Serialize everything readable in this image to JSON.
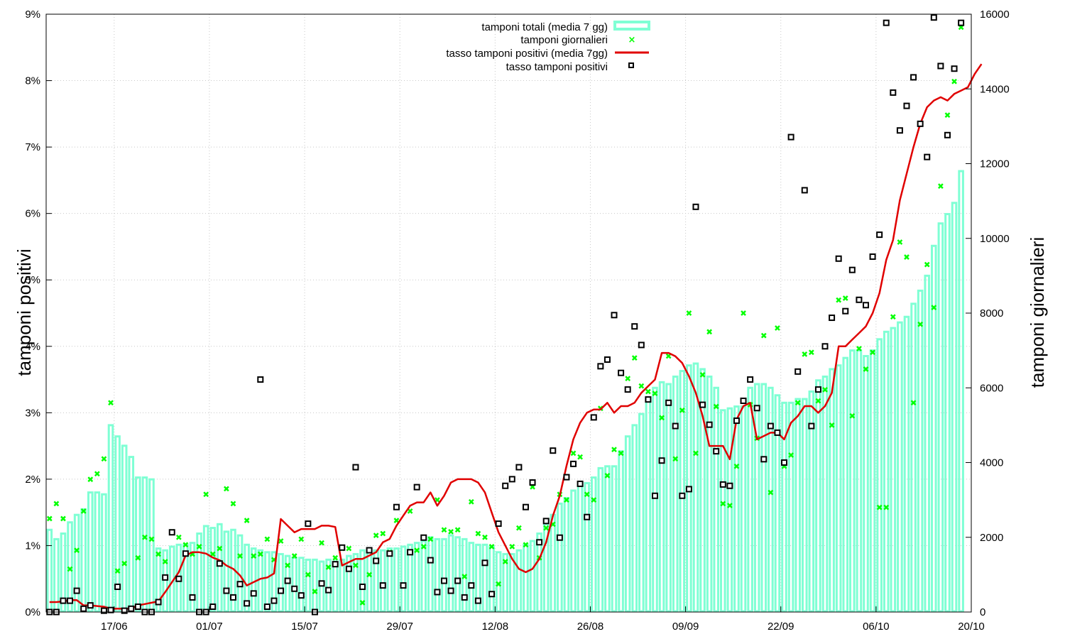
{
  "chart_data": {
    "type": "bar",
    "x_axis": {
      "tick_labels": [
        "17/06",
        "01/07",
        "15/07",
        "29/07",
        "12/08",
        "26/08",
        "09/09",
        "22/09",
        "06/10",
        "20/10"
      ],
      "tick_days": [
        10,
        24,
        38,
        52,
        66,
        80,
        94,
        108,
        122,
        136
      ],
      "range_days": [
        0,
        136
      ],
      "grid": true
    },
    "y_left": {
      "label": "tamponi positivi",
      "range": [
        0,
        9
      ],
      "tick_labels": [
        "0%",
        "1%",
        "2%",
        "3%",
        "4%",
        "5%",
        "6%",
        "7%",
        "8%",
        "9%"
      ],
      "grid": true
    },
    "y_right": {
      "label": "tamponi giornalieri",
      "range": [
        0,
        16000
      ],
      "tick_labels": [
        "0",
        "2000",
        "4000",
        "6000",
        "8000",
        "10000",
        "12000",
        "14000",
        "16000"
      ]
    },
    "legend": {
      "placement": "top-center",
      "entries": [
        {
          "label": "tamponi totali (media 7 gg)",
          "color": "#7fffd4",
          "style": "bar"
        },
        {
          "label": "tamponi giornalieri",
          "color": "#00ff00",
          "style": "cross"
        },
        {
          "label": "tasso tamponi positivi (media 7gg)",
          "color": "#e00000",
          "style": "line"
        },
        {
          "label": "tasso tamponi positivi",
          "color": "#000000",
          "style": "square"
        }
      ]
    },
    "series": [
      {
        "name": "tamponi totali (media 7 gg)",
        "axis": "right",
        "kind": "bar",
        "color": "#7fffd4",
        "values": [
          2200,
          1950,
          2100,
          2400,
          2600,
          2750,
          3200,
          3200,
          3150,
          5000,
          4700,
          4450,
          4150,
          3600,
          3600,
          3550,
          1700,
          1650,
          1750,
          1800,
          1800,
          1850,
          2100,
          2300,
          2250,
          2350,
          2150,
          2200,
          2050,
          1800,
          1700,
          1650,
          1600,
          1600,
          1550,
          1500,
          1450,
          1450,
          1400,
          1400,
          1350,
          1400,
          1350,
          1400,
          1500,
          1550,
          1650,
          1600,
          1650,
          1650,
          1700,
          1700,
          1750,
          1800,
          1850,
          1900,
          2000,
          1950,
          1950,
          2050,
          2000,
          1950,
          1850,
          1800,
          1800,
          1750,
          1600,
          1550,
          1550,
          1650,
          1800,
          1900,
          2100,
          2350,
          2600,
          2900,
          3050,
          3250,
          3400,
          3450,
          3600,
          3850,
          3900,
          3900,
          4300,
          4700,
          5000,
          5300,
          5700,
          6000,
          6150,
          6100,
          6300,
          6450,
          6600,
          6650,
          6500,
          6300,
          6000,
          5400,
          5450,
          5500,
          5500,
          6000,
          6100,
          6100,
          6000,
          5800,
          5600,
          5600,
          5700,
          5700,
          5900,
          6200,
          6300,
          6500,
          6600,
          6800,
          7000,
          7000,
          6850,
          7000,
          7300,
          7500,
          7600,
          7750,
          7900,
          8250,
          8600,
          9000,
          9800,
          10400,
          10650,
          10950,
          11800
        ]
      },
      {
        "name": "tamponi giornalieri",
        "axis": "right",
        "kind": "scatter",
        "color": "#00ff00",
        "x": [
          0,
          1,
          2,
          3,
          4,
          5,
          6,
          7,
          8,
          9,
          10,
          11,
          13,
          14,
          15,
          16,
          17,
          18,
          19,
          20,
          21,
          22,
          23,
          24,
          25,
          26,
          27,
          28,
          29,
          30,
          31,
          32,
          33,
          34,
          35,
          36,
          37,
          38,
          39,
          40,
          41,
          42,
          43,
          44,
          45,
          46,
          47,
          48,
          49,
          50,
          51,
          52,
          53,
          54,
          55,
          56,
          57,
          58,
          59,
          60,
          61,
          62,
          63,
          64,
          65,
          66,
          67,
          68,
          69,
          70,
          71,
          72,
          73,
          74,
          75,
          76,
          77,
          78,
          79,
          80,
          81,
          82,
          83,
          84,
          85,
          86,
          87,
          88,
          89,
          90,
          91,
          92,
          93,
          94,
          95,
          96,
          97,
          98,
          99,
          100,
          101,
          102,
          103,
          104,
          105,
          106,
          107,
          108,
          109,
          110,
          111,
          112,
          113,
          114,
          115,
          116,
          117,
          118,
          119,
          120,
          121,
          122,
          123,
          124,
          125,
          126,
          127,
          128,
          129,
          130,
          131,
          132,
          133,
          134
        ],
        "values": [
          2500,
          2900,
          2500,
          1150,
          1650,
          2700,
          3550,
          3700,
          4100,
          5600,
          1100,
          1300,
          1450,
          2000,
          1950,
          1550,
          1350,
          2150,
          2000,
          1800,
          1550,
          1750,
          3150,
          1550,
          1700,
          3300,
          2900,
          1500,
          2450,
          1500,
          1550,
          1950,
          1400,
          1900,
          1250,
          1500,
          1950,
          1000,
          550,
          1850,
          1200,
          1450,
          1700,
          1700,
          1250,
          250,
          1000,
          2050,
          2100,
          1600,
          2450,
          700,
          2700,
          1650,
          1750,
          1950,
          3000,
          2200,
          2150,
          2200,
          950,
          2950,
          2100,
          2000,
          1750,
          750,
          1350,
          1750,
          2250,
          1800,
          3350,
          1450,
          2250,
          2350,
          3150,
          3000,
          4250,
          4150,
          3150,
          3000,
          5450,
          3650,
          4350,
          4250,
          6250,
          6800,
          6050,
          5900,
          5850,
          5200,
          6850,
          4100,
          5400,
          8000,
          4250,
          6350,
          7500,
          5500,
          2900,
          2850,
          3900,
          8000,
          5550,
          4650,
          7400,
          3200,
          7600,
          3900,
          4200,
          5600,
          6900,
          6950,
          5650,
          5950,
          5000,
          8350,
          8400,
          5250,
          7050,
          6500,
          6950,
          2800,
          2800,
          7900,
          9900,
          9500,
          5600,
          7700,
          9300,
          8150,
          11400,
          13300,
          14200,
          15650
        ]
      },
      {
        "name": "tasso tamponi positivi (media 7gg)",
        "axis": "left",
        "kind": "line",
        "color": "#e00000",
        "values": [
          0.15,
          0.15,
          0.16,
          0.18,
          0.18,
          0.1,
          0.1,
          0.09,
          0.08,
          0.05,
          0.05,
          0.05,
          0.05,
          0.1,
          0.12,
          0.14,
          0.16,
          0.3,
          0.45,
          0.6,
          0.85,
          0.9,
          0.9,
          0.88,
          0.82,
          0.78,
          0.7,
          0.65,
          0.55,
          0.4,
          0.45,
          0.5,
          0.52,
          0.58,
          1.4,
          1.3,
          1.2,
          1.25,
          1.25,
          1.25,
          1.3,
          1.3,
          1.28,
          0.7,
          0.75,
          0.8,
          0.8,
          0.85,
          0.9,
          1.05,
          1.1,
          1.3,
          1.45,
          1.6,
          1.65,
          1.65,
          1.8,
          1.6,
          1.75,
          1.95,
          2.0,
          2.0,
          2.0,
          1.95,
          1.8,
          1.5,
          1.2,
          1.0,
          0.8,
          0.65,
          0.6,
          0.65,
          0.8,
          1.05,
          1.45,
          1.75,
          2.2,
          2.6,
          2.85,
          3.0,
          3.05,
          3.05,
          3.15,
          3.0,
          3.1,
          3.1,
          3.15,
          3.3,
          3.4,
          3.5,
          3.9,
          3.9,
          3.85,
          3.75,
          3.55,
          3.3,
          2.95,
          2.5,
          2.5,
          2.5,
          2.3,
          2.9,
          3.1,
          3.15,
          2.6,
          2.65,
          2.7,
          2.7,
          2.6,
          2.85,
          2.95,
          3.1,
          3.1,
          3.0,
          3.1,
          3.3,
          4.0,
          4.0,
          4.1,
          4.2,
          4.3,
          4.5,
          4.8,
          5.3,
          5.6,
          6.2,
          6.6,
          7.0,
          7.35,
          7.6,
          7.7,
          7.75,
          7.7,
          7.8,
          7.85,
          7.9,
          8.1,
          8.25
        ]
      },
      {
        "name": "tasso tamponi positivi",
        "axis": "left",
        "kind": "scatter",
        "color": "#000000",
        "x": [
          0,
          1,
          2,
          3,
          4,
          5,
          6,
          8,
          9,
          10,
          11,
          12,
          13,
          14,
          15,
          16,
          17,
          18,
          19,
          20,
          21,
          22,
          23,
          24,
          25,
          26,
          27,
          28,
          29,
          30,
          31,
          32,
          33,
          34,
          35,
          36,
          37,
          38,
          39,
          40,
          41,
          42,
          43,
          44,
          45,
          46,
          47,
          48,
          49,
          50,
          51,
          52,
          53,
          54,
          55,
          56,
          57,
          58,
          59,
          60,
          61,
          62,
          63,
          64,
          65,
          66,
          67,
          68,
          69,
          70,
          71,
          72,
          73,
          74,
          75,
          76,
          77,
          78,
          79,
          80,
          81,
          82,
          83,
          84,
          85,
          86,
          87,
          88,
          89,
          90,
          91,
          92,
          93,
          94,
          95,
          96,
          97,
          98,
          99,
          100,
          101,
          102,
          103,
          104,
          105,
          106,
          107,
          108,
          109,
          110,
          111,
          112,
          113,
          114,
          115,
          116,
          117,
          118,
          119,
          120,
          121,
          122,
          123,
          124,
          125,
          126,
          127,
          128,
          129,
          130,
          131,
          132,
          133,
          134
        ],
        "values": [
          0.0,
          0.0,
          0.17,
          0.17,
          0.32,
          0.05,
          0.1,
          0.02,
          0.03,
          0.38,
          0.02,
          0.05,
          0.08,
          0.0,
          0.0,
          0.15,
          0.52,
          1.2,
          0.5,
          0.88,
          0.22,
          0.0,
          0.0,
          0.08,
          0.73,
          0.32,
          0.22,
          0.42,
          0.13,
          0.28,
          3.5,
          0.08,
          0.17,
          0.32,
          0.47,
          0.35,
          0.25,
          1.33,
          0.0,
          0.43,
          0.33,
          0.72,
          0.97,
          0.65,
          2.18,
          0.38,
          0.93,
          0.77,
          0.4,
          0.88,
          1.58,
          0.4,
          0.9,
          1.88,
          1.12,
          0.78,
          0.3,
          0.47,
          0.32,
          0.47,
          0.22,
          0.4,
          0.17,
          0.74,
          0.27,
          1.33,
          1.9,
          2.0,
          2.18,
          1.58,
          1.95,
          1.05,
          1.37,
          2.43,
          1.12,
          2.03,
          2.23,
          1.93,
          1.43,
          2.93,
          3.7,
          3.8,
          4.47,
          3.6,
          3.35,
          4.3,
          4.02,
          3.2,
          1.75,
          2.28,
          3.15,
          2.8,
          1.75,
          1.85,
          6.1,
          3.12,
          2.82,
          2.42,
          1.92,
          1.9,
          2.88,
          3.18,
          3.5,
          3.07,
          2.3,
          2.8,
          2.7,
          2.25,
          7.15,
          3.62,
          6.35,
          2.8,
          3.35,
          4.0,
          4.43,
          5.32,
          4.53,
          5.15,
          4.7,
          4.62,
          5.35,
          5.68,
          8.87,
          7.82,
          7.25,
          7.62,
          8.05,
          7.35,
          6.85,
          8.95,
          8.22,
          7.18,
          8.18,
          8.87
        ]
      }
    ]
  }
}
